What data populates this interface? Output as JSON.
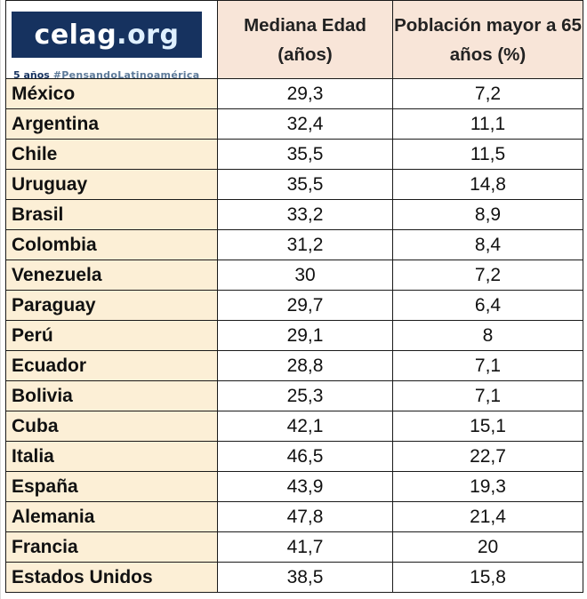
{
  "logo": {
    "name": "celag",
    "tld": ".org",
    "tag_years": "5 años",
    "tag_hashtag": "#PensandoLatinoamérica"
  },
  "headers": {
    "median_age": "Mediana Edad (años)",
    "pop_over_65": "Población mayor a 65 años (%)"
  },
  "rows": [
    {
      "country": "México",
      "median": "29,3",
      "pop65": "7,2"
    },
    {
      "country": "Argentina",
      "median": "32,4",
      "pop65": "11,1"
    },
    {
      "country": "Chile",
      "median": "35,5",
      "pop65": "11,5"
    },
    {
      "country": "Uruguay",
      "median": "35,5",
      "pop65": "14,8"
    },
    {
      "country": "Brasil",
      "median": "33,2",
      "pop65": "8,9"
    },
    {
      "country": "Colombia",
      "median": "31,2",
      "pop65": "8,4"
    },
    {
      "country": "Venezuela",
      "median": "30",
      "pop65": "7,2"
    },
    {
      "country": "Paraguay",
      "median": "29,7",
      "pop65": "6,4"
    },
    {
      "country": "Perú",
      "median": "29,1",
      "pop65": "8"
    },
    {
      "country": "Ecuador",
      "median": "28,8",
      "pop65": "7,1"
    },
    {
      "country": "Bolivia",
      "median": "25,3",
      "pop65": "7,1"
    },
    {
      "country": "Cuba",
      "median": "42,1",
      "pop65": "15,1"
    },
    {
      "country": "Italia",
      "median": "46,5",
      "pop65": "22,7"
    },
    {
      "country": "España",
      "median": "43,9",
      "pop65": "19,3"
    },
    {
      "country": "Alemania",
      "median": "47,8",
      "pop65": "21,4"
    },
    {
      "country": "Francia",
      "median": "41,7",
      "pop65": "20"
    },
    {
      "country": "Estados Unidos",
      "median": "38,5",
      "pop65": "15,8"
    }
  ],
  "colors": {
    "header_bg": "#f8e5d8",
    "country_bg": "#fcefd6",
    "logo_bg": "#16325f"
  }
}
